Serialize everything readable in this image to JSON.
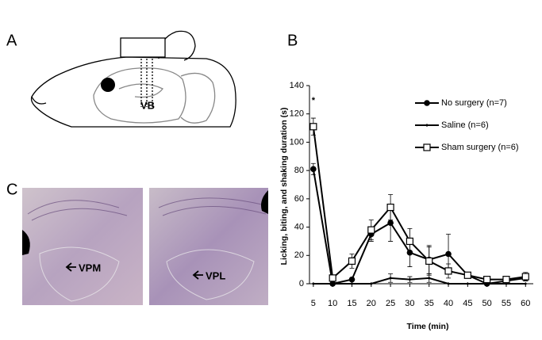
{
  "panel_labels": [
    "A",
    "B",
    "C"
  ],
  "diagram_labels": {
    "vb": "VB",
    "vpm": "VPM",
    "vpl": "VPL"
  },
  "chart_data": {
    "type": "line",
    "xlabel": "Time (min)",
    "ylabel": "Licking, biting, and shaking duration (s)",
    "annotation": "*",
    "x": [
      5,
      10,
      15,
      20,
      25,
      30,
      35,
      40,
      45,
      50,
      55,
      60
    ],
    "xlim": [
      4,
      62
    ],
    "xticks": [
      5,
      10,
      15,
      20,
      25,
      30,
      35,
      40,
      45,
      50,
      55,
      60
    ],
    "ylim": [
      0,
      140
    ],
    "yticks": [
      0,
      20,
      40,
      60,
      80,
      100,
      120,
      140
    ],
    "legend": "upper right",
    "series": [
      {
        "name": "No surgery (n=7)",
        "color": "#000000",
        "marker": "filled-circle",
        "values": [
          81,
          0,
          3,
          35,
          43,
          22,
          17,
          21,
          6,
          0,
          2,
          4
        ],
        "errors": [
          4,
          1,
          1,
          5,
          13,
          10,
          10,
          14,
          2,
          1,
          1,
          2
        ]
      },
      {
        "name": "Saline (n=6)",
        "color": "#000000",
        "marker": "small",
        "values": [
          0,
          0,
          0,
          0,
          4,
          3,
          4,
          0,
          0,
          0,
          0,
          0
        ],
        "errors": [
          0,
          0,
          0,
          0,
          3,
          2,
          3,
          0,
          0,
          0,
          0,
          0
        ]
      },
      {
        "name": "Sham surgery (n=6)",
        "color": "#000000",
        "marker": "open-square",
        "values": [
          111,
          4,
          16,
          38,
          54,
          30,
          16,
          9,
          6,
          3,
          3,
          5
        ],
        "errors": [
          6,
          1,
          5,
          7,
          9,
          9,
          10,
          5,
          2,
          1,
          1,
          3
        ]
      }
    ]
  }
}
